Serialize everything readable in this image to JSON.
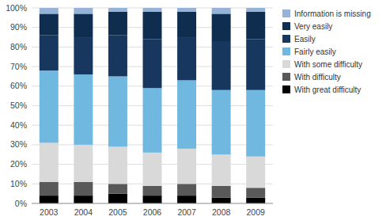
{
  "chart_data": {
    "type": "bar",
    "stacked": true,
    "categories": [
      "2003",
      "2004",
      "2005",
      "2006",
      "2007",
      "2008",
      "2009"
    ],
    "series": [
      {
        "name": "With great difficulty",
        "color": "#000000",
        "values": [
          4,
          4,
          5,
          4,
          4,
          3,
          3
        ]
      },
      {
        "name": "With difficulty",
        "color": "#595959",
        "values": [
          7,
          7,
          5,
          5,
          6,
          6,
          5
        ]
      },
      {
        "name": "With some difficulty",
        "color": "#d9d9d9",
        "values": [
          20,
          19,
          19,
          17,
          18,
          16,
          16
        ]
      },
      {
        "name": "Fairly easily",
        "color": "#70b8e0",
        "values": [
          37,
          36,
          36,
          33,
          35,
          33,
          34
        ]
      },
      {
        "name": "Easily",
        "color": "#17375e",
        "values": [
          18,
          19,
          21,
          25,
          22,
          25,
          26
        ]
      },
      {
        "name": "Very easily",
        "color": "#0f2d4e",
        "values": [
          11,
          12,
          12,
          14,
          13,
          14,
          14
        ]
      },
      {
        "name": "Information is missing",
        "color": "#95b3d7",
        "values": [
          3,
          3,
          2,
          2,
          2,
          3,
          2
        ]
      }
    ],
    "ylim": [
      0,
      100
    ],
    "yticks": [
      {
        "value": 0,
        "label": "0%"
      },
      {
        "value": 10,
        "label": "10%"
      },
      {
        "value": 20,
        "label": "20%"
      },
      {
        "value": 30,
        "label": "30%"
      },
      {
        "value": 40,
        "label": "40%"
      },
      {
        "value": 50,
        "label": "50%"
      },
      {
        "value": 60,
        "label": "60%"
      },
      {
        "value": 70,
        "label": "70%"
      },
      {
        "value": 80,
        "label": "80%"
      },
      {
        "value": 90,
        "label": "90%"
      },
      {
        "value": 100,
        "label": "100%"
      }
    ],
    "grid": true,
    "legend": "right"
  }
}
